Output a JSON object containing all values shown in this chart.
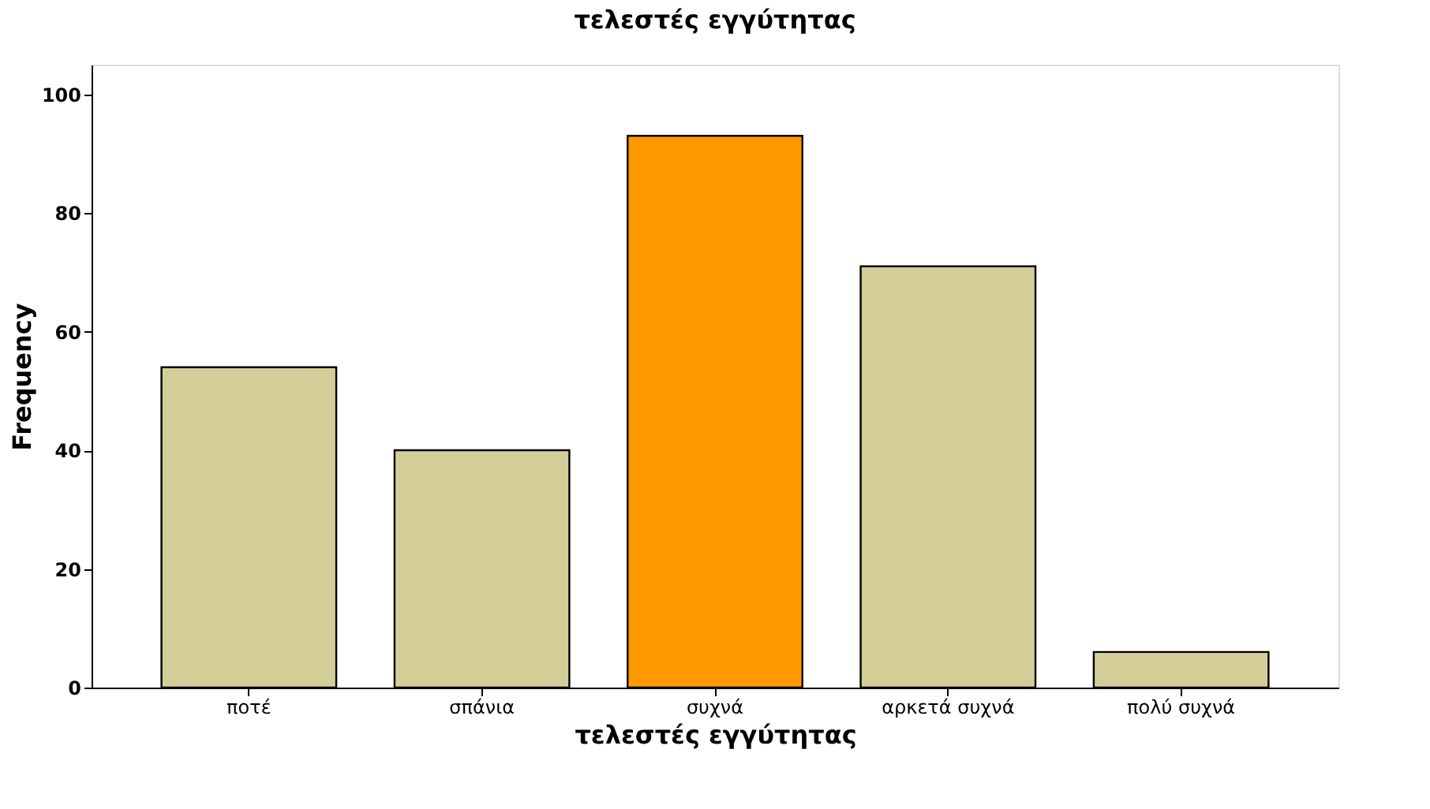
{
  "chart_data": {
    "type": "bar",
    "title": "τελεστές εγγύτητας",
    "xlabel": "τελεστές εγγύτητας",
    "ylabel": "Frequency",
    "categories": [
      "ποτέ",
      "σπάνια",
      "συχνά",
      "αρκετά συχνά",
      "πολύ συχνά"
    ],
    "values": [
      54,
      40,
      93,
      71,
      6
    ],
    "colors": [
      "#d3ce97",
      "#d3ce97",
      "#ff9900",
      "#d3ce97",
      "#d3ce97"
    ],
    "ylim": [
      0,
      105
    ],
    "yticks": [
      0,
      20,
      40,
      60,
      80,
      100
    ],
    "grid": false
  }
}
